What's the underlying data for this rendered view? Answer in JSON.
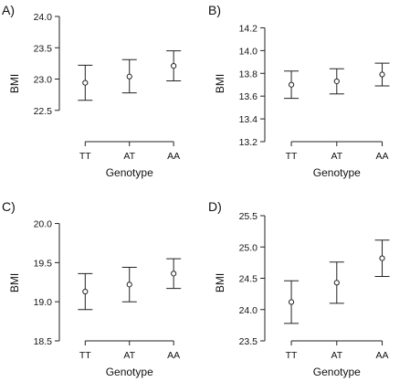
{
  "figure": {
    "background": "#ffffff",
    "ink": "#222222"
  },
  "chart_data": [
    {
      "type": "scatter",
      "panel_label": "A)",
      "xlabel": "Genotype",
      "ylabel": "BMI",
      "categories": [
        "TT",
        "AT",
        "AA"
      ],
      "ylim": [
        22.0,
        24.0
      ],
      "yticks": [
        22.5,
        23.0,
        23.5,
        24.0
      ],
      "ytick_labels": [
        "22.5",
        "23.0",
        "23.5",
        "24.0"
      ],
      "series": [
        {
          "values": [
            22.94,
            23.04,
            23.21
          ],
          "lower": [
            22.66,
            22.78,
            22.97
          ],
          "upper": [
            23.22,
            23.31,
            23.45
          ]
        }
      ],
      "grid": false
    },
    {
      "type": "scatter",
      "panel_label": "B)",
      "xlabel": "Genotype",
      "ylabel": "BMI",
      "categories": [
        "TT",
        "AT",
        "AA"
      ],
      "ylim": [
        13.2,
        14.3
      ],
      "yticks": [
        13.2,
        13.4,
        13.6,
        13.8,
        14.0,
        14.2
      ],
      "ytick_labels": [
        "13.2",
        "13.4",
        "13.6",
        "13.8",
        "14.0",
        "14.2"
      ],
      "series": [
        {
          "values": [
            13.7,
            13.73,
            13.79
          ],
          "lower": [
            13.58,
            13.62,
            13.69
          ],
          "upper": [
            13.82,
            13.84,
            13.89
          ]
        }
      ],
      "grid": false
    },
    {
      "type": "scatter",
      "panel_label": "C)",
      "xlabel": "Genotype",
      "ylabel": "BMI",
      "categories": [
        "TT",
        "AT",
        "AA"
      ],
      "ylim": [
        18.5,
        20.1
      ],
      "yticks": [
        18.5,
        19.0,
        19.5,
        20.0
      ],
      "ytick_labels": [
        "18.5",
        "19.0",
        "19.5",
        "20.0"
      ],
      "series": [
        {
          "values": [
            19.13,
            19.22,
            19.36
          ],
          "lower": [
            18.9,
            19.0,
            19.17
          ],
          "upper": [
            19.36,
            19.44,
            19.55
          ]
        }
      ],
      "grid": false
    },
    {
      "type": "scatter",
      "panel_label": "D)",
      "xlabel": "Genotype",
      "ylabel": "BMI",
      "categories": [
        "TT",
        "AT",
        "AA"
      ],
      "ylim": [
        23.5,
        25.5
      ],
      "yticks": [
        23.5,
        24.0,
        24.5,
        25.0,
        25.5
      ],
      "ytick_labels": [
        "23.5",
        "24.0",
        "24.5",
        "25.0",
        "25.5"
      ],
      "series": [
        {
          "values": [
            24.12,
            24.43,
            24.82
          ],
          "lower": [
            23.78,
            24.1,
            24.53
          ],
          "upper": [
            24.46,
            24.76,
            25.11
          ]
        }
      ],
      "grid": false
    }
  ]
}
